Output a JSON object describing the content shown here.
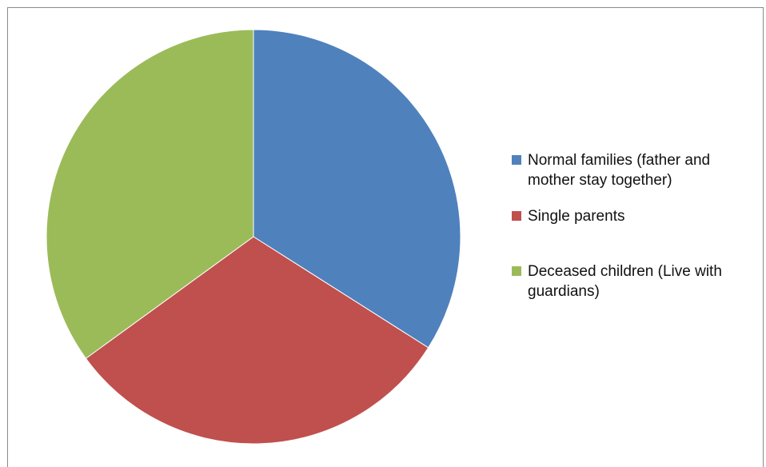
{
  "chart_data": {
    "type": "pie",
    "title": "",
    "slices": [
      {
        "label": "Normal families (father and mother stay together)",
        "value": 34,
        "color": "#4f81bd"
      },
      {
        "label": "Single parents",
        "value": 31,
        "color": "#c0504d"
      },
      {
        "label": "Deceased children (Live with guardians)",
        "value": 35,
        "color": "#9bbb59"
      }
    ],
    "legend_position": "right",
    "start_angle": "top, clockwise"
  }
}
